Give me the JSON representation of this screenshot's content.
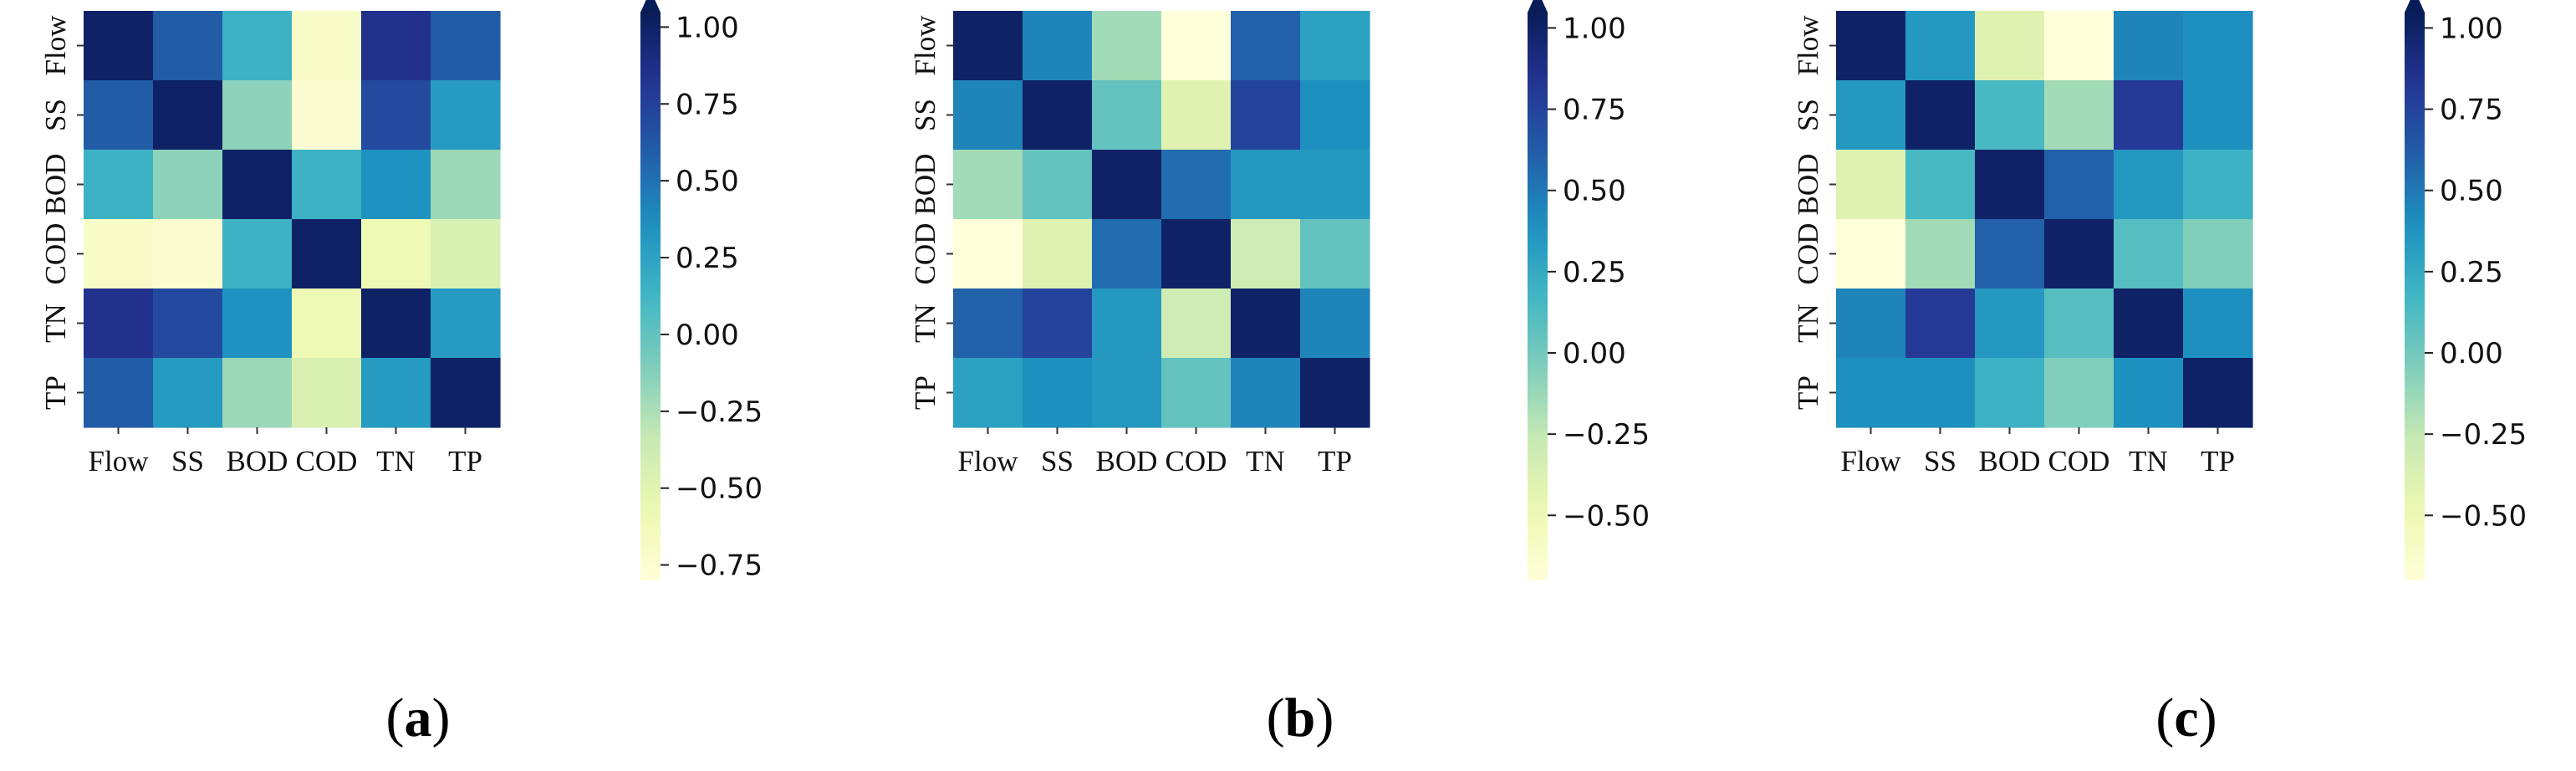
{
  "variables": [
    "Flow",
    "SS",
    "BOD",
    "COD",
    "TN",
    "TP"
  ],
  "chart_data": [
    {
      "type": "heatmap",
      "panel_label": "a",
      "x_categories": [
        "Flow",
        "SS",
        "BOD",
        "COD",
        "TN",
        "TP"
      ],
      "y_categories": [
        "Flow",
        "SS",
        "BOD",
        "COD",
        "TN",
        "TP"
      ],
      "vmin": -0.8,
      "vmax": 1.05,
      "colorbar_ticks": [
        "1.00",
        "0.75",
        "0.50",
        "0.25",
        "0.00",
        "−0.25",
        "−0.50",
        "−0.75"
      ],
      "colorbar_tick_values": [
        1.0,
        0.75,
        0.5,
        0.25,
        0.0,
        -0.25,
        -0.5,
        -0.75
      ],
      "values": [
        [
          1.0,
          0.6,
          0.15,
          -0.7,
          0.85,
          0.6
        ],
        [
          0.6,
          1.0,
          -0.15,
          -0.75,
          0.7,
          0.3
        ],
        [
          0.15,
          -0.15,
          1.0,
          0.15,
          0.35,
          -0.2
        ],
        [
          -0.7,
          -0.75,
          0.15,
          1.0,
          -0.6,
          -0.45
        ],
        [
          0.85,
          0.7,
          0.35,
          -0.6,
          1.0,
          0.3
        ],
        [
          0.6,
          0.3,
          -0.2,
          -0.45,
          0.3,
          1.0
        ]
      ]
    },
    {
      "type": "heatmap",
      "panel_label": "b",
      "x_categories": [
        "Flow",
        "SS",
        "BOD",
        "COD",
        "TN",
        "TP"
      ],
      "y_categories": [
        "Flow",
        "SS",
        "BOD",
        "COD",
        "TN",
        "TP"
      ],
      "vmin": -0.7,
      "vmax": 1.05,
      "colorbar_ticks": [
        "1.00",
        "0.75",
        "0.50",
        "0.25",
        "0.00",
        "−0.25",
        "−0.50"
      ],
      "colorbar_tick_values": [
        1.0,
        0.75,
        0.5,
        0.25,
        0.0,
        -0.25,
        -0.5
      ],
      "values": [
        [
          1.0,
          0.45,
          -0.15,
          -0.7,
          0.6,
          0.3
        ],
        [
          0.45,
          1.0,
          0.05,
          -0.4,
          0.75,
          0.4
        ],
        [
          -0.15,
          0.05,
          1.0,
          0.55,
          0.35,
          0.35
        ],
        [
          -0.7,
          -0.4,
          0.55,
          1.0,
          -0.3,
          0.05
        ],
        [
          0.6,
          0.75,
          0.35,
          -0.3,
          1.0,
          0.45
        ],
        [
          0.3,
          0.4,
          0.35,
          0.05,
          0.45,
          1.0
        ]
      ]
    },
    {
      "type": "heatmap",
      "panel_label": "c",
      "x_categories": [
        "Flow",
        "SS",
        "BOD",
        "COD",
        "TN",
        "TP"
      ],
      "y_categories": [
        "Flow",
        "SS",
        "BOD",
        "COD",
        "TN",
        "TP"
      ],
      "vmin": -0.7,
      "vmax": 1.05,
      "colorbar_ticks": [
        "1.00",
        "0.75",
        "0.50",
        "0.25",
        "0.00",
        "−0.25",
        "−0.50"
      ],
      "colorbar_tick_values": [
        1.0,
        0.75,
        0.5,
        0.25,
        0.0,
        -0.25,
        -0.5
      ],
      "values": [
        [
          1.0,
          0.35,
          -0.4,
          -0.7,
          0.45,
          0.4
        ],
        [
          0.35,
          1.0,
          0.15,
          -0.15,
          0.8,
          0.4
        ],
        [
          -0.4,
          0.15,
          1.0,
          0.6,
          0.35,
          0.2
        ],
        [
          -0.7,
          -0.15,
          0.6,
          1.0,
          0.1,
          -0.05
        ],
        [
          0.45,
          0.8,
          0.35,
          0.1,
          1.0,
          0.4
        ],
        [
          0.4,
          0.4,
          0.2,
          -0.05,
          0.4,
          1.0
        ]
      ]
    }
  ]
}
